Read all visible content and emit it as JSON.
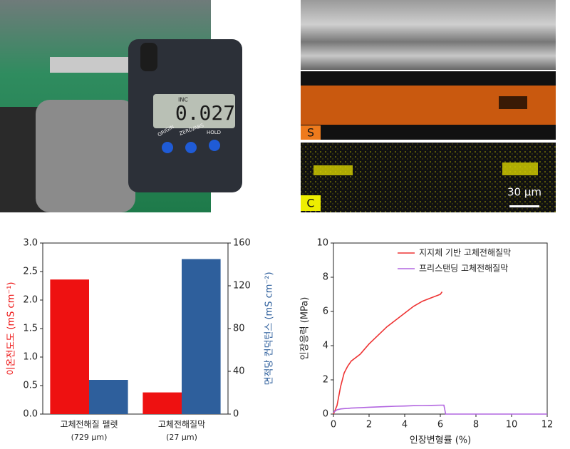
{
  "photos": {
    "micrometer": {
      "mode": "INC",
      "display": "0.027",
      "buttons": [
        "ORIGIN",
        "ZERO/ABS",
        "HOLD"
      ]
    },
    "sem": {
      "panels": [
        "S",
        "C"
      ],
      "scale_bar": "30 μm"
    }
  },
  "chart_data": [
    {
      "type": "bar",
      "categories": [
        "고체전해질 펠렛",
        "고체전해질막"
      ],
      "category_sublabels": [
        "(729 μm)",
        "(27 μm)"
      ],
      "y_label": "이온전도도 (mS cm⁻¹)",
      "y2_label": "면적당 컨덕턴스 (mS cm⁻²)",
      "series": [
        {
          "color": "#ee1111",
          "axis": "y",
          "values": [
            2.36,
            0.38
          ]
        },
        {
          "color": "#2e5f9c",
          "axis": "y2",
          "values": [
            32,
            145
          ]
        }
      ],
      "ylim": [
        0,
        3.0
      ],
      "yticks": [
        {
          "value": 0,
          "label": "0.0"
        },
        {
          "value": 0.5,
          "label": "0.5"
        },
        {
          "value": 1,
          "label": "1.0"
        },
        {
          "value": 1.5,
          "label": "1.5"
        },
        {
          "value": 2,
          "label": "2.0"
        },
        {
          "value": 2.5,
          "label": "2.5"
        },
        {
          "value": 3,
          "label": "3.0"
        }
      ],
      "y2lim": [
        0,
        160
      ],
      "y2ticks": [
        0,
        40,
        80,
        120,
        160
      ],
      "grid": false
    },
    {
      "type": "line",
      "x_label": "인장변형률 (%)",
      "y_label": "인장응력 (MPa)",
      "x": [
        0,
        0.2,
        0.4,
        0.6,
        0.8,
        1,
        1.5,
        2,
        2.5,
        3,
        3.5,
        4,
        4.5,
        5,
        5.5,
        6,
        6.1,
        6.2,
        6.3,
        7,
        8,
        9,
        10,
        11,
        12
      ],
      "series": [
        {
          "name": "지지체 기반 고체전해질막",
          "color": "#ee3333",
          "values": [
            0,
            0.5,
            1.6,
            2.4,
            2.8,
            3.1,
            3.5,
            4.1,
            4.6,
            5.1,
            5.5,
            5.9,
            6.3,
            6.6,
            6.8,
            7.0,
            7.15,
            null,
            null,
            null,
            null,
            null,
            null,
            null,
            null
          ]
        },
        {
          "name": "프리스탠딩 고체전해질막",
          "color": "#b266e0",
          "values": [
            0.1,
            0.25,
            0.3,
            0.32,
            0.33,
            0.35,
            0.37,
            0.4,
            0.42,
            0.44,
            0.46,
            0.47,
            0.49,
            0.5,
            0.51,
            0.52,
            0.52,
            0.52,
            0,
            0,
            0,
            0,
            0,
            0,
            0
          ]
        }
      ],
      "xlim": [
        0,
        12
      ],
      "xticks": [
        0,
        2,
        4,
        6,
        8,
        10,
        12
      ],
      "ylim": [
        0,
        10
      ],
      "yticks": [
        0,
        2,
        4,
        6,
        8,
        10
      ],
      "legend": "top-right",
      "grid": false
    }
  ]
}
